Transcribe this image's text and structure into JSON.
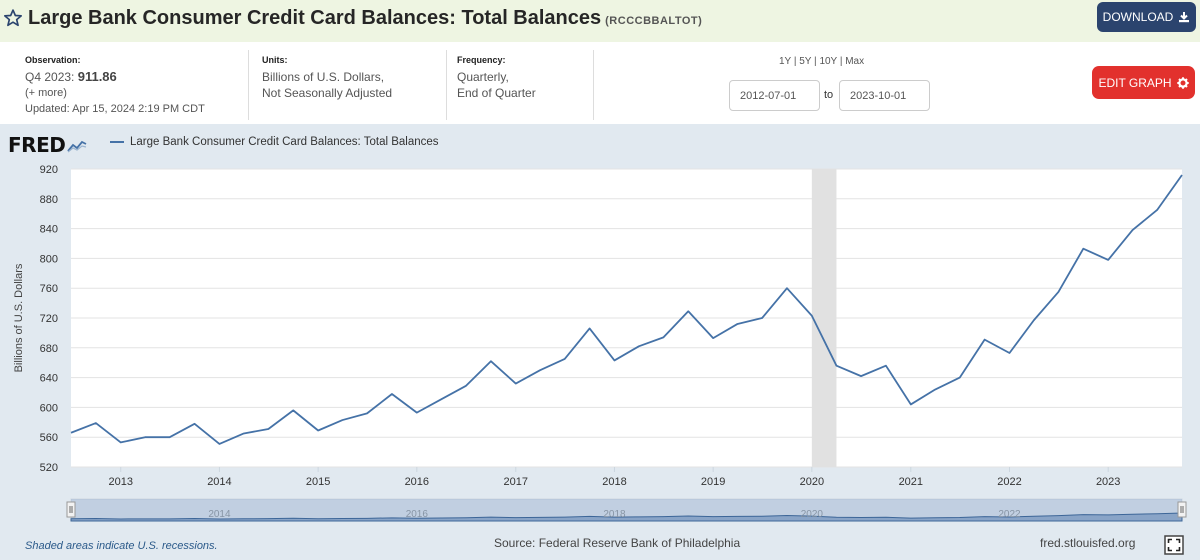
{
  "header": {
    "title": "Large Bank Consumer Credit Card Balances: Total Balances",
    "series_id": "(RCCCBBALTOT)",
    "download_label": "DOWNLOAD",
    "bg_color": "#eef5e2",
    "download_color": "#2b446e"
  },
  "info": {
    "observation_label": "Observation:",
    "observation_period": "Q4 2023:",
    "observation_value": "911.86",
    "more": "(+ more)",
    "updated_label": "Updated:",
    "updated_value": "Apr 15, 2024 2:19 PM CDT",
    "units_label": "Units:",
    "units_line1": "Billions of U.S. Dollars,",
    "units_line2": "Not Seasonally Adjusted",
    "frequency_label": "Frequency:",
    "frequency_line1": "Quarterly,",
    "frequency_line2": "End of Quarter",
    "range_links": [
      "1Y",
      "5Y",
      "10Y",
      "Max"
    ],
    "start_date": "2012-07-01",
    "to_label": "to",
    "end_date": "2023-10-01",
    "edit_label": "EDIT GRAPH",
    "edit_color": "#e2312d"
  },
  "chart_panel": {
    "logo": "FRED",
    "legend_label": "Large Bank Consumer Credit Card Balances: Total Balances",
    "footer_recessions": "Shaded areas indicate U.S. recessions.",
    "footer_source": "Source: Federal Reserve Bank of Philadelphia",
    "footer_site": "fred.stlouisfed.org",
    "bg_color": "#e1e9f0",
    "line_color": "#4572a7"
  },
  "chart_data": {
    "type": "line",
    "title": "",
    "xlabel": "",
    "ylabel": "Billions of U.S. Dollars",
    "ylim": [
      520,
      920
    ],
    "yticks": [
      520,
      560,
      600,
      640,
      680,
      720,
      760,
      800,
      840,
      880,
      920
    ],
    "xlim": [
      "2012-07-01",
      "2023-10-01"
    ],
    "xticks": [
      "2013",
      "2014",
      "2015",
      "2016",
      "2017",
      "2018",
      "2019",
      "2020",
      "2021",
      "2022",
      "2023"
    ],
    "grid": true,
    "legend_position": "top-left",
    "recession_shading": [
      [
        "2020-01-01",
        "2020-04-01"
      ]
    ],
    "navigator_labels": [
      "2014",
      "2016",
      "2018",
      "2020",
      "2022"
    ],
    "series": [
      {
        "name": "Large Bank Consumer Credit Card Balances: Total Balances",
        "x": [
          "2012-07-01",
          "2012-10-01",
          "2013-01-01",
          "2013-04-01",
          "2013-07-01",
          "2013-10-01",
          "2014-01-01",
          "2014-04-01",
          "2014-07-01",
          "2014-10-01",
          "2015-01-01",
          "2015-04-01",
          "2015-07-01",
          "2015-10-01",
          "2016-01-01",
          "2016-04-01",
          "2016-07-01",
          "2016-10-01",
          "2017-01-01",
          "2017-04-01",
          "2017-07-01",
          "2017-10-01",
          "2018-01-01",
          "2018-04-01",
          "2018-07-01",
          "2018-10-01",
          "2019-01-01",
          "2019-04-01",
          "2019-07-01",
          "2019-10-01",
          "2020-01-01",
          "2020-04-01",
          "2020-07-01",
          "2020-10-01",
          "2021-01-01",
          "2021-04-01",
          "2021-07-01",
          "2021-10-01",
          "2022-01-01",
          "2022-04-01",
          "2022-07-01",
          "2022-10-01",
          "2023-01-01",
          "2023-04-01",
          "2023-07-01",
          "2023-10-01"
        ],
        "values": [
          566,
          579,
          553,
          560,
          560,
          578,
          551,
          565,
          571,
          596,
          569,
          583,
          592,
          618,
          593,
          611,
          629,
          662,
          632,
          650,
          665,
          706,
          663,
          682,
          694,
          729,
          693,
          712,
          720,
          760,
          723,
          656,
          642,
          656,
          604,
          624,
          640,
          691,
          673,
          717,
          755,
          813,
          798,
          838,
          865,
          912
        ]
      }
    ]
  }
}
